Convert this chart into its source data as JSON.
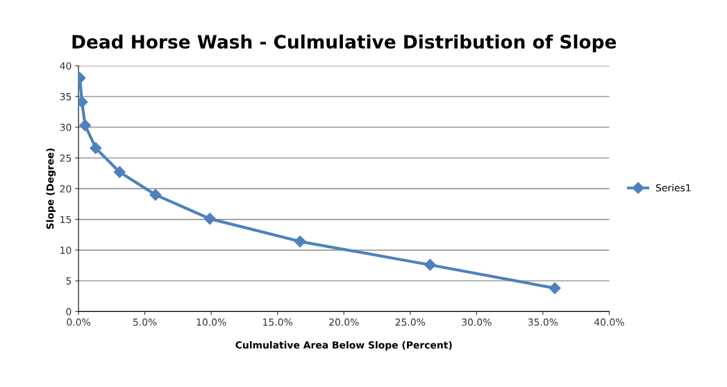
{
  "chart_data": {
    "type": "line",
    "title": "Dead Horse Wash - Culmulative Distribution of Slope",
    "xlabel": "Culmulative Area Below Slope (Percent)",
    "ylabel": "Slope (Degree)",
    "x": [
      0.1,
      0.26,
      0.5,
      1.3,
      3.1,
      5.8,
      9.9,
      16.7,
      26.5,
      35.9
    ],
    "series": [
      {
        "name": "Series1",
        "color": "#4f81bd",
        "values": [
          38.0,
          34.1,
          30.3,
          26.6,
          22.7,
          19.0,
          15.1,
          11.4,
          7.6,
          3.8
        ]
      }
    ],
    "xlim": [
      0,
      40
    ],
    "xticks": [
      {
        "value": 0,
        "label": "0.0%"
      },
      {
        "value": 5,
        "label": "5.0%"
      },
      {
        "value": 10,
        "label": "10.0%"
      },
      {
        "value": 15,
        "label": "15.0%"
      },
      {
        "value": 20,
        "label": "20.0%"
      },
      {
        "value": 25,
        "label": "25.0%"
      },
      {
        "value": 30,
        "label": "30.0%"
      },
      {
        "value": 35,
        "label": "35.0%"
      },
      {
        "value": 40,
        "label": "40.0%"
      }
    ],
    "ylim": [
      0,
      40
    ],
    "yticks": [
      0,
      5,
      10,
      15,
      20,
      25,
      30,
      35,
      40
    ],
    "grid": "y",
    "legend": "right",
    "marker": "diamond",
    "line_style": "solid"
  }
}
